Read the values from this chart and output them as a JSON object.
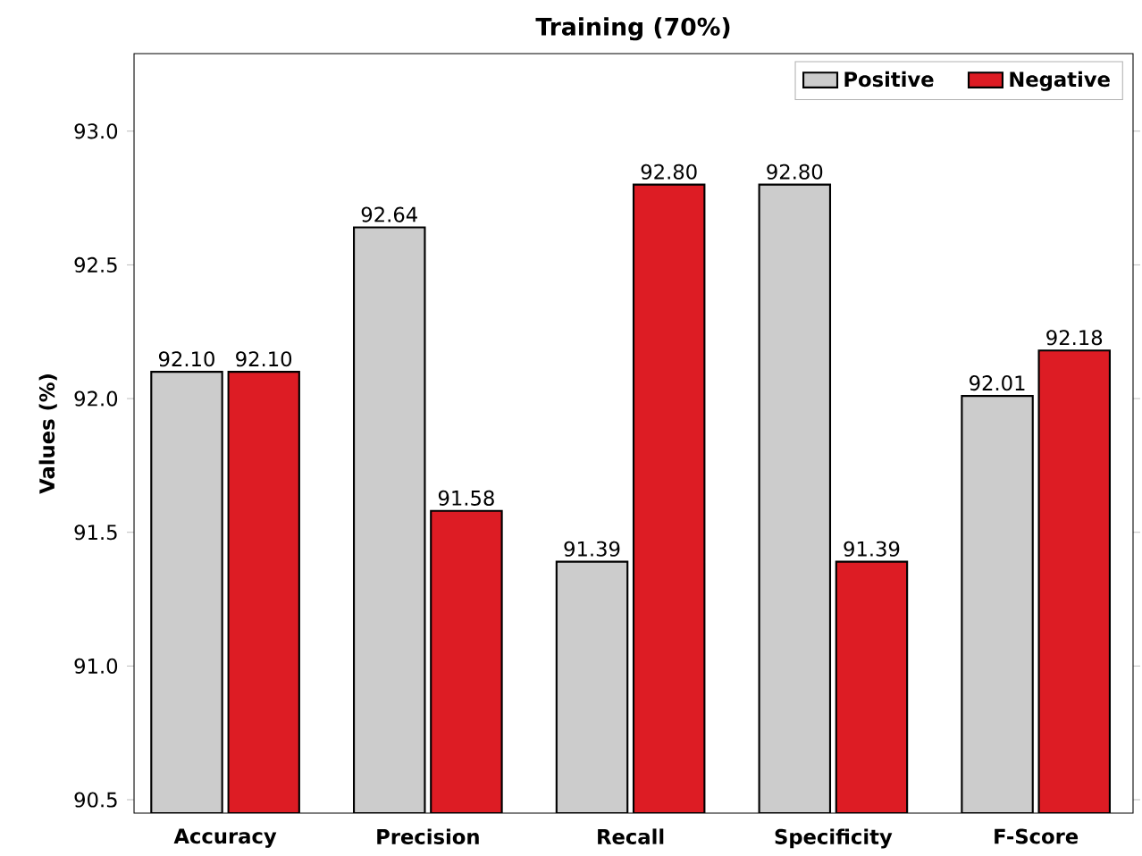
{
  "chart_data": {
    "type": "bar",
    "title": "Training (70%)",
    "ylabel": "Values (%)",
    "categories": [
      "Accuracy",
      "Precision",
      "Recall",
      "Specificity",
      "F-Score"
    ],
    "series": [
      {
        "name": "Positive",
        "color": "#cccccc",
        "values": [
          92.1,
          92.64,
          91.39,
          92.8,
          92.01
        ],
        "value_labels": [
          "92.10",
          "92.64",
          "91.39",
          "92.80",
          "92.01"
        ]
      },
      {
        "name": "Negative",
        "color": "#dd1c24",
        "values": [
          92.1,
          91.58,
          92.8,
          91.39,
          92.18
        ],
        "value_labels": [
          "92.10",
          "91.58",
          "92.80",
          "91.39",
          "92.18"
        ]
      }
    ],
    "ylim": [
      90.45,
      93.29
    ],
    "yticks": [
      {
        "value": 90.5,
        "label": "90.5"
      },
      {
        "value": 91.0,
        "label": "91.0"
      },
      {
        "value": 91.5,
        "label": "91.5"
      },
      {
        "value": 92.0,
        "label": "92.0"
      },
      {
        "value": 92.5,
        "label": "92.5"
      },
      {
        "value": 93.0,
        "label": "93.0"
      }
    ],
    "legend": "top right",
    "grid": false
  }
}
